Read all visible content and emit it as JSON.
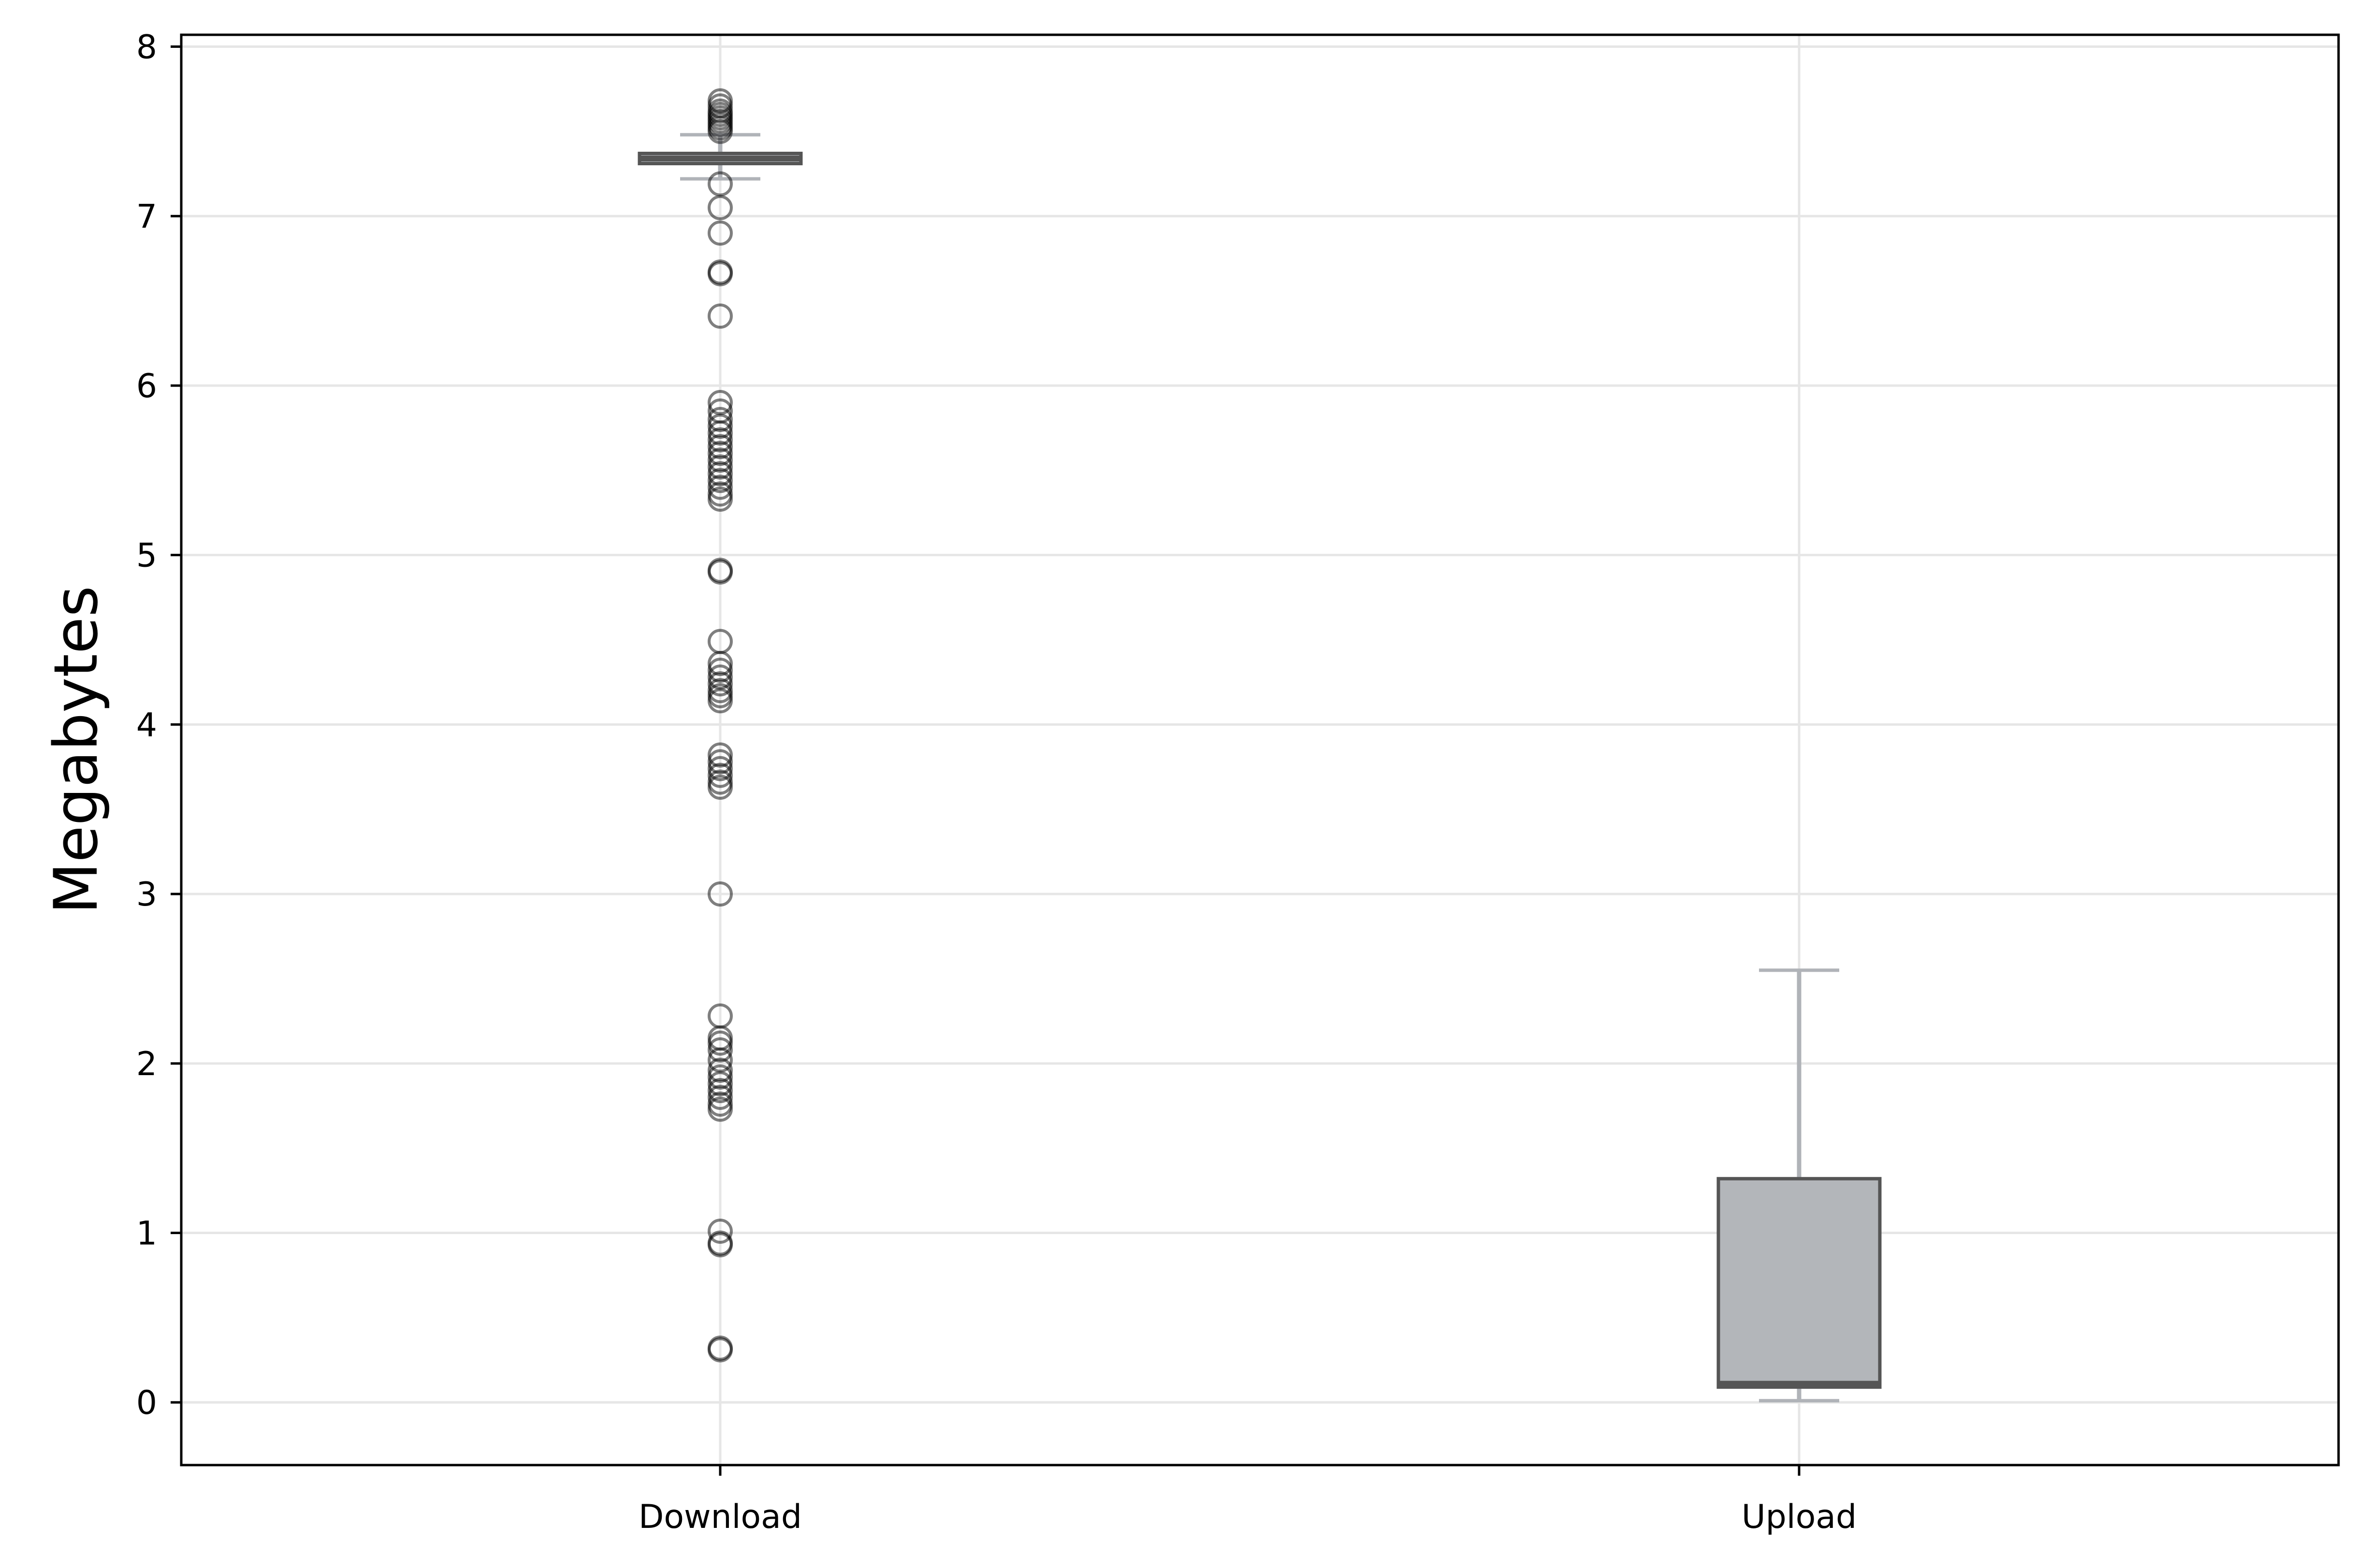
{
  "chart_data": {
    "type": "box",
    "title": "",
    "xlabel": "",
    "ylabel": "Megabytes",
    "ylim": [
      -0.37,
      8.07
    ],
    "yticks": [
      0,
      1,
      2,
      3,
      4,
      5,
      6,
      7,
      8
    ],
    "grid": true,
    "categories": [
      "Download",
      "Upload"
    ],
    "boxes": [
      {
        "name": "Download",
        "whisker_low": 7.22,
        "q1": 7.31,
        "median": 7.34,
        "q3": 7.37,
        "whisker_high": 7.48,
        "outliers": [
          7.68,
          7.65,
          7.62,
          7.6,
          7.58,
          7.56,
          7.54,
          7.52,
          7.5,
          7.19,
          7.05,
          6.9,
          6.67,
          6.66,
          6.41,
          5.9,
          5.85,
          5.8,
          5.76,
          5.72,
          5.68,
          5.64,
          5.6,
          5.56,
          5.52,
          5.48,
          5.44,
          5.4,
          5.36,
          5.33,
          4.91,
          4.9,
          4.49,
          4.36,
          4.32,
          4.28,
          4.24,
          4.2,
          4.17,
          4.14,
          3.82,
          3.78,
          3.74,
          3.7,
          3.66,
          3.63,
          3.0,
          2.28,
          2.15,
          2.12,
          2.08,
          2.02,
          1.96,
          1.92,
          1.88,
          1.84,
          1.8,
          1.76,
          1.73,
          1.01,
          0.94,
          0.93,
          0.32,
          0.31
        ]
      },
      {
        "name": "Upload",
        "whisker_low": 0.01,
        "q1": 0.09,
        "median": 0.11,
        "q3": 1.32,
        "whisker_high": 2.55,
        "outliers": []
      }
    ],
    "colors": {
      "box_fill": "#b3b6ba",
      "box_edge": "#555555",
      "whisker": "#b0b3b8",
      "outlier": "#000000",
      "grid": "#e6e6e6",
      "spine": "#000000"
    }
  }
}
